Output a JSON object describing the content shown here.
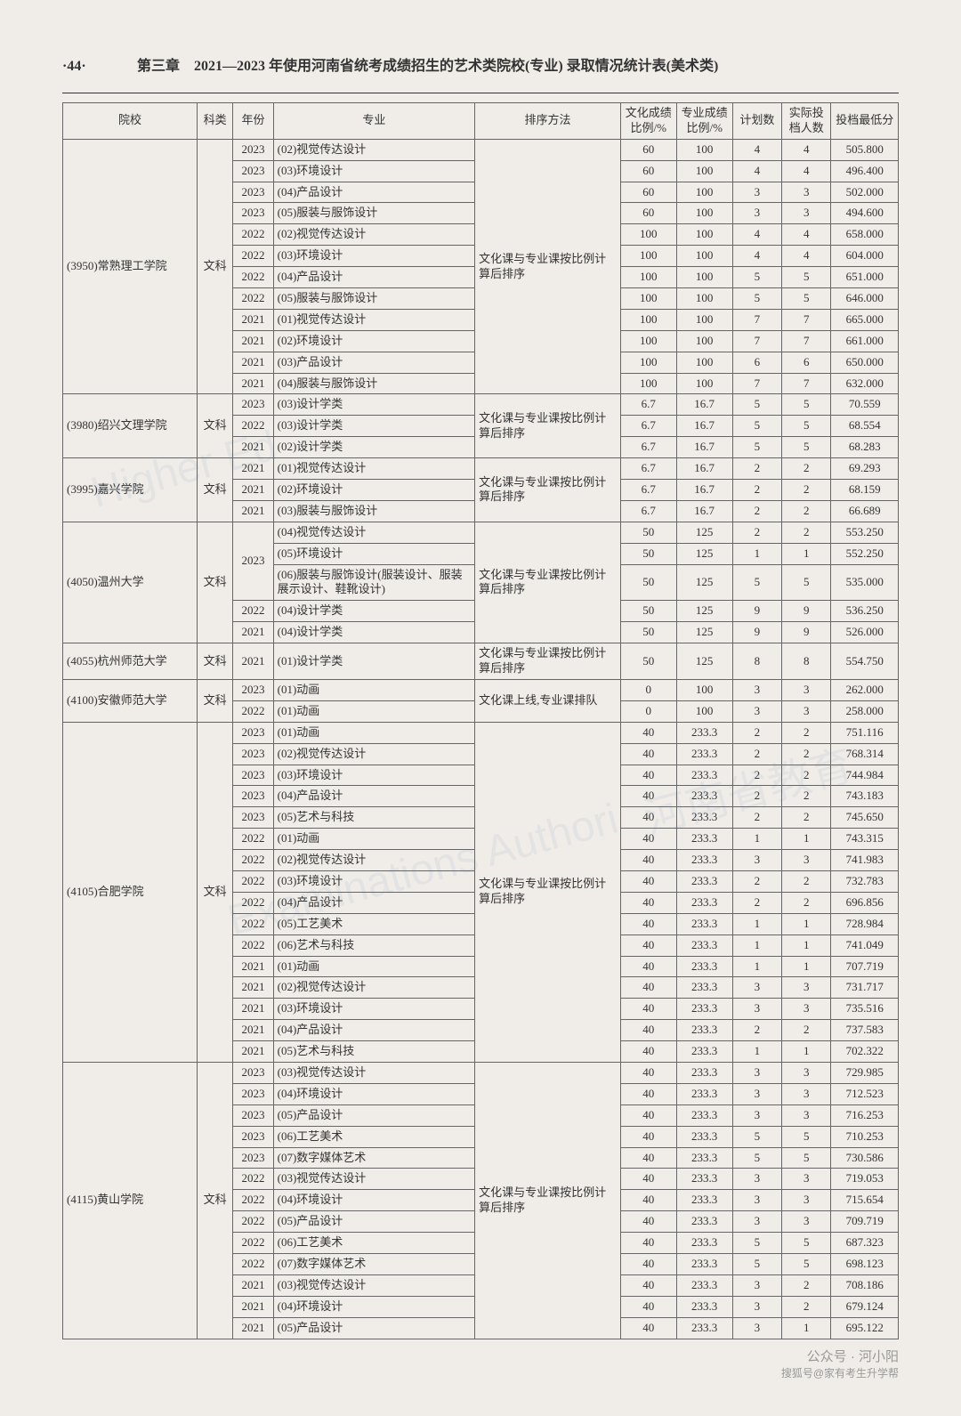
{
  "page_no": "·44·",
  "chapter_title": "第三章　2021—2023 年使用河南省统考成绩招生的艺术类院校(专业) 录取情况统计表(美术类)",
  "headers": [
    "院校",
    "科类",
    "年份",
    "专业",
    "排序方法",
    "文化成绩比例/%",
    "专业成绩比例/%",
    "计划数",
    "实际投档人数",
    "投档最低分"
  ],
  "footer_main": "公众号 · 河小阳",
  "footer_sub": "搜狐号@家有考生升学帮",
  "watermarks": [
    "Higher Ed",
    "河南省教育",
    "Examinations Authori"
  ],
  "schools": [
    {
      "name": "(3950)常熟理工学院",
      "subject": "文科",
      "sort": "文化课与专业课按比例计算后排序",
      "rows": [
        {
          "y": "2023",
          "m": "(02)视觉传达设计",
          "w": "60",
          "z": "100",
          "p": "4",
          "a": "4",
          "s": "505.800"
        },
        {
          "y": "2023",
          "m": "(03)环境设计",
          "w": "60",
          "z": "100",
          "p": "4",
          "a": "4",
          "s": "496.400"
        },
        {
          "y": "2023",
          "m": "(04)产品设计",
          "w": "60",
          "z": "100",
          "p": "3",
          "a": "3",
          "s": "502.000"
        },
        {
          "y": "2023",
          "m": "(05)服装与服饰设计",
          "w": "60",
          "z": "100",
          "p": "3",
          "a": "3",
          "s": "494.600"
        },
        {
          "y": "2022",
          "m": "(02)视觉传达设计",
          "w": "100",
          "z": "100",
          "p": "4",
          "a": "4",
          "s": "658.000"
        },
        {
          "y": "2022",
          "m": "(03)环境设计",
          "w": "100",
          "z": "100",
          "p": "4",
          "a": "4",
          "s": "604.000"
        },
        {
          "y": "2022",
          "m": "(04)产品设计",
          "w": "100",
          "z": "100",
          "p": "5",
          "a": "5",
          "s": "651.000"
        },
        {
          "y": "2022",
          "m": "(05)服装与服饰设计",
          "w": "100",
          "z": "100",
          "p": "5",
          "a": "5",
          "s": "646.000"
        },
        {
          "y": "2021",
          "m": "(01)视觉传达设计",
          "w": "100",
          "z": "100",
          "p": "7",
          "a": "7",
          "s": "665.000"
        },
        {
          "y": "2021",
          "m": "(02)环境设计",
          "w": "100",
          "z": "100",
          "p": "7",
          "a": "7",
          "s": "661.000"
        },
        {
          "y": "2021",
          "m": "(03)产品设计",
          "w": "100",
          "z": "100",
          "p": "6",
          "a": "6",
          "s": "650.000"
        },
        {
          "y": "2021",
          "m": "(04)服装与服饰设计",
          "w": "100",
          "z": "100",
          "p": "7",
          "a": "7",
          "s": "632.000"
        }
      ]
    },
    {
      "name": "(3980)绍兴文理学院",
      "subject": "文科",
      "sort": "文化课与专业课按比例计算后排序",
      "rows": [
        {
          "y": "2023",
          "m": "(03)设计学类",
          "w": "6.7",
          "z": "16.7",
          "p": "5",
          "a": "5",
          "s": "70.559"
        },
        {
          "y": "2022",
          "m": "(03)设计学类",
          "w": "6.7",
          "z": "16.7",
          "p": "5",
          "a": "5",
          "s": "68.554"
        },
        {
          "y": "2021",
          "m": "(02)设计学类",
          "w": "6.7",
          "z": "16.7",
          "p": "5",
          "a": "5",
          "s": "68.283"
        }
      ]
    },
    {
      "name": "(3995)嘉兴学院",
      "subject": "文科",
      "sort": "文化课与专业课按比例计算后排序",
      "rows": [
        {
          "y": "2021",
          "m": "(01)视觉传达设计",
          "w": "6.7",
          "z": "16.7",
          "p": "2",
          "a": "2",
          "s": "69.293"
        },
        {
          "y": "2021",
          "m": "(02)环境设计",
          "w": "6.7",
          "z": "16.7",
          "p": "2",
          "a": "2",
          "s": "68.159"
        },
        {
          "y": "2021",
          "m": "(03)服装与服饰设计",
          "w": "6.7",
          "z": "16.7",
          "p": "2",
          "a": "2",
          "s": "66.689"
        }
      ]
    },
    {
      "name": "(4050)温州大学",
      "subject": "文科",
      "sort": "文化课与专业课按比例计算后排序",
      "rows": [
        {
          "y": "2023",
          "m": "(04)视觉传达设计",
          "w": "50",
          "z": "125",
          "p": "2",
          "a": "2",
          "s": "553.250",
          "yspan": 3
        },
        {
          "m": "(05)环境设计",
          "w": "50",
          "z": "125",
          "p": "1",
          "a": "1",
          "s": "552.250"
        },
        {
          "m": "(06)服装与服饰设计(服装设计、服装展示设计、鞋靴设计)",
          "w": "50",
          "z": "125",
          "p": "5",
          "a": "5",
          "s": "535.000"
        },
        {
          "y": "2022",
          "m": "(04)设计学类",
          "w": "50",
          "z": "125",
          "p": "9",
          "a": "9",
          "s": "536.250"
        },
        {
          "y": "2021",
          "m": "(04)设计学类",
          "w": "50",
          "z": "125",
          "p": "9",
          "a": "9",
          "s": "526.000"
        }
      ]
    },
    {
      "name": "(4055)杭州师范大学",
      "subject": "文科",
      "sort": "文化课与专业课按比例计算后排序",
      "rows": [
        {
          "y": "2021",
          "m": "(01)设计学类",
          "w": "50",
          "z": "125",
          "p": "8",
          "a": "8",
          "s": "554.750"
        }
      ]
    },
    {
      "name": "(4100)安徽师范大学",
      "subject": "文科",
      "sort": "文化课上线,专业课排队",
      "rows": [
        {
          "y": "2023",
          "m": "(01)动画",
          "w": "0",
          "z": "100",
          "p": "3",
          "a": "3",
          "s": "262.000"
        },
        {
          "y": "2022",
          "m": "(01)动画",
          "w": "0",
          "z": "100",
          "p": "3",
          "a": "3",
          "s": "258.000"
        }
      ]
    },
    {
      "name": "(4105)合肥学院",
      "subject": "文科",
      "sort": "文化课与专业课按比例计算后排序",
      "rows": [
        {
          "y": "2023",
          "m": "(01)动画",
          "w": "40",
          "z": "233.3",
          "p": "2",
          "a": "2",
          "s": "751.116"
        },
        {
          "y": "2023",
          "m": "(02)视觉传达设计",
          "w": "40",
          "z": "233.3",
          "p": "2",
          "a": "2",
          "s": "768.314"
        },
        {
          "y": "2023",
          "m": "(03)环境设计",
          "w": "40",
          "z": "233.3",
          "p": "2",
          "a": "2",
          "s": "744.984"
        },
        {
          "y": "2023",
          "m": "(04)产品设计",
          "w": "40",
          "z": "233.3",
          "p": "2",
          "a": "2",
          "s": "743.183"
        },
        {
          "y": "2023",
          "m": "(05)艺术与科技",
          "w": "40",
          "z": "233.3",
          "p": "2",
          "a": "2",
          "s": "745.650"
        },
        {
          "y": "2022",
          "m": "(01)动画",
          "w": "40",
          "z": "233.3",
          "p": "1",
          "a": "1",
          "s": "743.315"
        },
        {
          "y": "2022",
          "m": "(02)视觉传达设计",
          "w": "40",
          "z": "233.3",
          "p": "3",
          "a": "3",
          "s": "741.983"
        },
        {
          "y": "2022",
          "m": "(03)环境设计",
          "w": "40",
          "z": "233.3",
          "p": "2",
          "a": "2",
          "s": "732.783"
        },
        {
          "y": "2022",
          "m": "(04)产品设计",
          "w": "40",
          "z": "233.3",
          "p": "2",
          "a": "2",
          "s": "696.856"
        },
        {
          "y": "2022",
          "m": "(05)工艺美术",
          "w": "40",
          "z": "233.3",
          "p": "1",
          "a": "1",
          "s": "728.984"
        },
        {
          "y": "2022",
          "m": "(06)艺术与科技",
          "w": "40",
          "z": "233.3",
          "p": "1",
          "a": "1",
          "s": "741.049"
        },
        {
          "y": "2021",
          "m": "(01)动画",
          "w": "40",
          "z": "233.3",
          "p": "1",
          "a": "1",
          "s": "707.719"
        },
        {
          "y": "2021",
          "m": "(02)视觉传达设计",
          "w": "40",
          "z": "233.3",
          "p": "3",
          "a": "3",
          "s": "731.717"
        },
        {
          "y": "2021",
          "m": "(03)环境设计",
          "w": "40",
          "z": "233.3",
          "p": "3",
          "a": "3",
          "s": "735.516"
        },
        {
          "y": "2021",
          "m": "(04)产品设计",
          "w": "40",
          "z": "233.3",
          "p": "2",
          "a": "2",
          "s": "737.583"
        },
        {
          "y": "2021",
          "m": "(05)艺术与科技",
          "w": "40",
          "z": "233.3",
          "p": "1",
          "a": "1",
          "s": "702.322"
        }
      ]
    },
    {
      "name": "(4115)黄山学院",
      "subject": "文科",
      "sort": "文化课与专业课按比例计算后排序",
      "rows": [
        {
          "y": "2023",
          "m": "(03)视觉传达设计",
          "w": "40",
          "z": "233.3",
          "p": "3",
          "a": "3",
          "s": "729.985"
        },
        {
          "y": "2023",
          "m": "(04)环境设计",
          "w": "40",
          "z": "233.3",
          "p": "3",
          "a": "3",
          "s": "712.523"
        },
        {
          "y": "2023",
          "m": "(05)产品设计",
          "w": "40",
          "z": "233.3",
          "p": "3",
          "a": "3",
          "s": "716.253"
        },
        {
          "y": "2023",
          "m": "(06)工艺美术",
          "w": "40",
          "z": "233.3",
          "p": "5",
          "a": "5",
          "s": "710.253"
        },
        {
          "y": "2023",
          "m": "(07)数字媒体艺术",
          "w": "40",
          "z": "233.3",
          "p": "5",
          "a": "5",
          "s": "730.586"
        },
        {
          "y": "2022",
          "m": "(03)视觉传达设计",
          "w": "40",
          "z": "233.3",
          "p": "3",
          "a": "3",
          "s": "719.053"
        },
        {
          "y": "2022",
          "m": "(04)环境设计",
          "w": "40",
          "z": "233.3",
          "p": "3",
          "a": "3",
          "s": "715.654"
        },
        {
          "y": "2022",
          "m": "(05)产品设计",
          "w": "40",
          "z": "233.3",
          "p": "3",
          "a": "3",
          "s": "709.719"
        },
        {
          "y": "2022",
          "m": "(06)工艺美术",
          "w": "40",
          "z": "233.3",
          "p": "5",
          "a": "5",
          "s": "687.323"
        },
        {
          "y": "2022",
          "m": "(07)数字媒体艺术",
          "w": "40",
          "z": "233.3",
          "p": "5",
          "a": "5",
          "s": "698.123"
        },
        {
          "y": "2021",
          "m": "(03)视觉传达设计",
          "w": "40",
          "z": "233.3",
          "p": "3",
          "a": "2",
          "s": "708.186"
        },
        {
          "y": "2021",
          "m": "(04)环境设计",
          "w": "40",
          "z": "233.3",
          "p": "3",
          "a": "2",
          "s": "679.124"
        },
        {
          "y": "2021",
          "m": "(05)产品设计",
          "w": "40",
          "z": "233.3",
          "p": "3",
          "a": "1",
          "s": "695.122"
        }
      ]
    }
  ]
}
